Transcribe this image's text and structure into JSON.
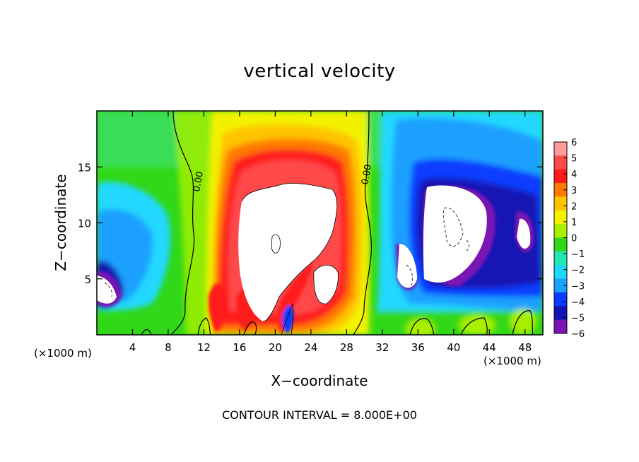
{
  "chart_data": {
    "type": "heatmap",
    "title": "vertical velocity",
    "xlabel": "X−coordinate",
    "ylabel": "Z−coordinate",
    "x_unit_label": "(×1000 m)",
    "xlim": [
      0,
      50
    ],
    "ylim": [
      0,
      20
    ],
    "x_ticks": [
      4,
      8,
      12,
      16,
      20,
      24,
      28,
      32,
      36,
      40,
      44,
      48
    ],
    "y_ticks": [
      5,
      10,
      15
    ],
    "colorbar": {
      "range": [
        -6,
        6
      ],
      "levels": [
        6,
        5,
        4,
        3,
        2,
        1,
        0,
        -1,
        -2,
        -3,
        -4,
        -5,
        -6
      ],
      "colors": [
        "#ff9a9a",
        "#ff4a4a",
        "#ff1a1a",
        "#ff7a00",
        "#ffc400",
        "#f2f200",
        "#a8f000",
        "#30d818",
        "#20e8b0",
        "#20d8ff",
        "#1aa0ff",
        "#0a3cff",
        "#1414b4",
        "#7a14b4"
      ]
    },
    "zero_contour_labels": [
      "0.00",
      "0.00"
    ],
    "contour_interval": "CONTOUR INTERVAL = 8.000E+00"
  }
}
